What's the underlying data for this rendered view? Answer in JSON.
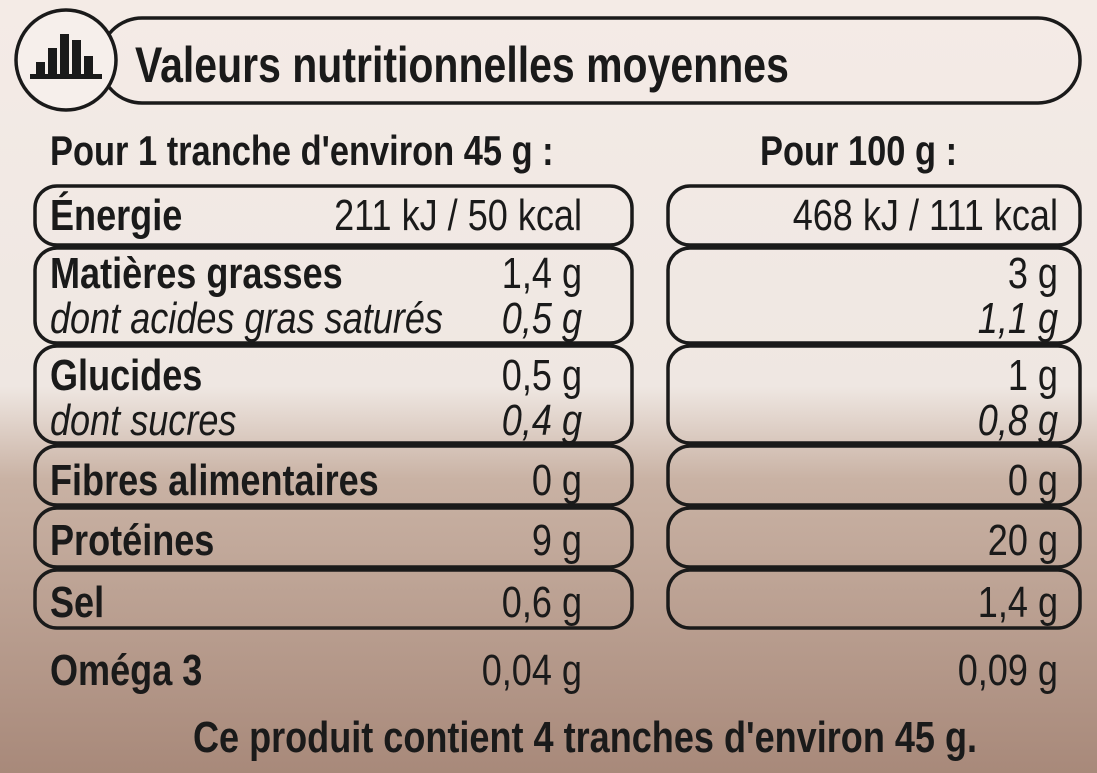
{
  "header": {
    "title": "Valeurs nutritionnelles moyennes"
  },
  "columns": [
    "Pour 1 tranche d'environ 45 g :",
    "Pour 100 g :"
  ],
  "rows": [
    {
      "label": "Énergie",
      "per_slice": "211 kJ / 50 kcal",
      "per_100g": "468 kJ / 111 kcal"
    },
    {
      "label": "Matières grasses",
      "per_slice": "1,4 g",
      "per_100g": "3 g",
      "sub": {
        "label": "dont acides gras saturés",
        "per_slice": "0,5 g",
        "per_100g": "1,1 g"
      }
    },
    {
      "label": "Glucides",
      "per_slice": "0,5 g",
      "per_100g": "1 g",
      "sub": {
        "label": "dont sucres",
        "per_slice": "0,4 g",
        "per_100g": "0,8 g"
      }
    },
    {
      "label": "Fibres alimentaires",
      "per_slice": "0 g",
      "per_100g": "0 g"
    },
    {
      "label": "Protéines",
      "per_slice": "9 g",
      "per_100g": "20 g"
    },
    {
      "label": "Sel",
      "per_slice": "0,6 g",
      "per_100g": "1,4 g"
    },
    {
      "label": "Oméga 3",
      "per_slice": "0,04 g",
      "per_100g": "0,09 g"
    }
  ],
  "footer": "Ce produit contient 4 tranches d'environ 45 g."
}
